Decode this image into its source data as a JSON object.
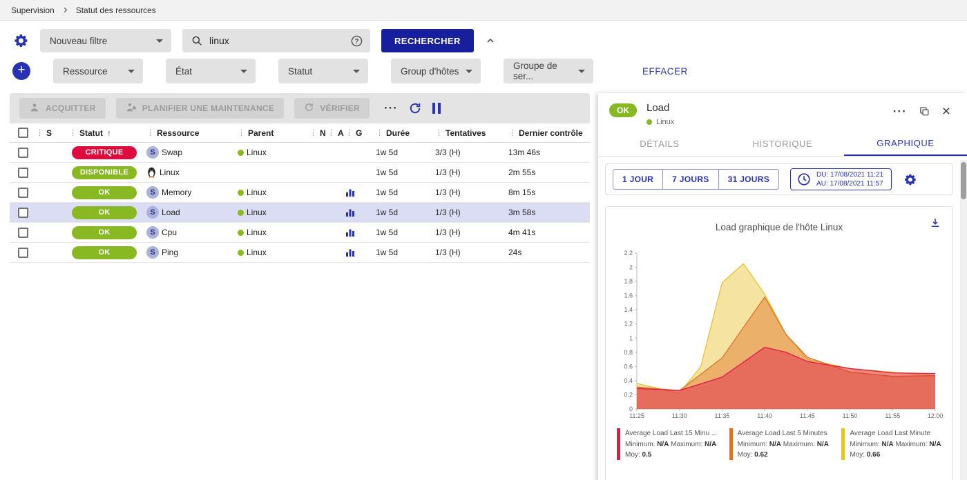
{
  "breadcrumb": {
    "items": [
      "Supervision",
      "Statut des ressources"
    ]
  },
  "filters": {
    "filter_select": "Nouveau filtre",
    "search_value": "linux",
    "search_button": "RECHERCHER",
    "clear_button": "EFFACER",
    "dropdowns": [
      "Ressource",
      "État",
      "Statut",
      "Group d'hôtes",
      "Groupe de ser..."
    ]
  },
  "toolbar": {
    "acknowledge": "ACQUITTER",
    "maintenance": "PLANIFIER UNE MAINTENANCE",
    "check": "VÉRIFIER"
  },
  "table": {
    "columns": [
      "S",
      "Statut",
      "Ressource",
      "Parent",
      "N",
      "A",
      "G",
      "Durée",
      "Tentatives",
      "Dernier contrôle"
    ],
    "rows": [
      {
        "status": "CRITIQUE",
        "status_color": "#e00b3d",
        "kind": "service",
        "resource": "Swap",
        "parent": "Linux",
        "graph": false,
        "duration": "1w 5d",
        "tries": "3/3 (H)",
        "last_check": "13m 46s",
        "selected": false
      },
      {
        "status": "DISPONIBLE",
        "status_color": "#88b922",
        "kind": "host",
        "resource": "Linux",
        "parent": "",
        "graph": false,
        "duration": "1w 5d",
        "tries": "1/3 (H)",
        "last_check": "2m 55s",
        "selected": false
      },
      {
        "status": "OK",
        "status_color": "#88b922",
        "kind": "service",
        "resource": "Memory",
        "parent": "Linux",
        "graph": true,
        "duration": "1w 5d",
        "tries": "1/3 (H)",
        "last_check": "8m 15s",
        "selected": false
      },
      {
        "status": "OK",
        "status_color": "#88b922",
        "kind": "service",
        "resource": "Load",
        "parent": "Linux",
        "graph": true,
        "duration": "1w 5d",
        "tries": "1/3 (H)",
        "last_check": "3m 58s",
        "selected": true
      },
      {
        "status": "OK",
        "status_color": "#88b922",
        "kind": "service",
        "resource": "Cpu",
        "parent": "Linux",
        "graph": true,
        "duration": "1w 5d",
        "tries": "1/3 (H)",
        "last_check": "4m 41s",
        "selected": false
      },
      {
        "status": "OK",
        "status_color": "#88b922",
        "kind": "service",
        "resource": "Ping",
        "parent": "Linux",
        "graph": true,
        "duration": "1w 5d",
        "tries": "1/3 (H)",
        "last_check": "24s",
        "selected": false
      }
    ]
  },
  "panel": {
    "status": "OK",
    "status_color": "#88b922",
    "title": "Load",
    "host": "Linux",
    "tabs": [
      "DÉTAILS",
      "HISTORIQUE",
      "GRAPHIQUE"
    ],
    "active_tab": 2,
    "ranges": [
      "1 JOUR",
      "7 JOURS",
      "31 JOURS"
    ],
    "date_from": "DU: 17/08/2021 11:21",
    "date_to": "AU: 17/08/2021 11:57"
  },
  "chart_data": {
    "type": "area",
    "title": "Load graphique de l'hôte Linux",
    "x_ticks": [
      "11:25",
      "11:30",
      "11:35",
      "11:40",
      "11:45",
      "11:50",
      "11:55",
      "12:00"
    ],
    "x_range_minutes": [
      0,
      35
    ],
    "ylim": [
      0,
      2.2
    ],
    "y_step": 0.2,
    "legend_labels": {
      "min": "Minimum:",
      "max": "Maximum:",
      "avg": "Moy:"
    },
    "series": [
      {
        "name": "Average Load Last 15 Minu ...",
        "color": "#e01b4c",
        "min": "N/A",
        "max": "N/A",
        "avg": "0.5",
        "points": [
          [
            0,
            0.29
          ],
          [
            5,
            0.26
          ],
          [
            10,
            0.45
          ],
          [
            15,
            0.87
          ],
          [
            17.5,
            0.8
          ],
          [
            20,
            0.67
          ],
          [
            25,
            0.57
          ],
          [
            30,
            0.51
          ],
          [
            35,
            0.5
          ]
        ]
      },
      {
        "name": "Average Load Last 5 Minutes",
        "color": "#df7227",
        "min": "N/A",
        "max": "N/A",
        "avg": "0.62",
        "points": [
          [
            0,
            0.31
          ],
          [
            5,
            0.26
          ],
          [
            10,
            0.72
          ],
          [
            12.5,
            1.15
          ],
          [
            15,
            1.58
          ],
          [
            17.5,
            1.05
          ],
          [
            20,
            0.73
          ],
          [
            25,
            0.52
          ],
          [
            30,
            0.46
          ],
          [
            35,
            0.47
          ]
        ]
      },
      {
        "name": "Average Load Last Minute",
        "color": "#e8c32e",
        "min": "N/A",
        "max": "N/A",
        "avg": "0.66",
        "points": [
          [
            0,
            0.36
          ],
          [
            5,
            0.22
          ],
          [
            7.5,
            0.6
          ],
          [
            10,
            1.78
          ],
          [
            12.5,
            2.05
          ],
          [
            15,
            1.62
          ],
          [
            17.5,
            1.05
          ],
          [
            20,
            0.7
          ],
          [
            25,
            0.57
          ],
          [
            30,
            0.52
          ],
          [
            35,
            0.47
          ]
        ]
      }
    ]
  },
  "colors": {
    "accent_blue": "#2731b3",
    "primary_button": "#181f9c",
    "critical_red": "#e00b3d",
    "ok_green": "#88b922",
    "selected_row": "#dbddf4"
  }
}
